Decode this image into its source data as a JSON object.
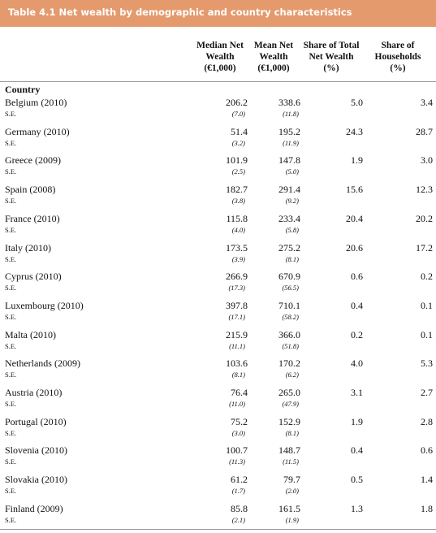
{
  "header": {
    "title": "Table 4.1  Net wealth by demographic and country characteristics"
  },
  "table": {
    "columns": [
      [
        "Median Net",
        "Wealth",
        "(€1,000)"
      ],
      [
        "Mean Net",
        "Wealth",
        "(€1,000)"
      ],
      [
        "Share of Total",
        "Net Wealth",
        "(%)"
      ],
      [
        "Share of",
        "Households",
        "(%)"
      ]
    ],
    "section": "Country",
    "rows": [
      {
        "name": "Belgium (2010)",
        "se_label": "S.E.",
        "median": "206.2",
        "mean": "338.6",
        "share_wealth": "5.0",
        "share_households": "3.4",
        "se_median": "(7.0)",
        "se_mean": "(11.8)"
      },
      {
        "name": "Germany (2010)",
        "se_label": "S.E.",
        "median": "51.4",
        "mean": "195.2",
        "share_wealth": "24.3",
        "share_households": "28.7",
        "se_median": "(3.2)",
        "se_mean": "(11.9)"
      },
      {
        "name": "Greece (2009)",
        "se_label": "S.E.",
        "median": "101.9",
        "mean": "147.8",
        "share_wealth": "1.9",
        "share_households": "3.0",
        "se_median": "(2.5)",
        "se_mean": "(5.0)"
      },
      {
        "name": "Spain (2008)",
        "se_label": "S.E.",
        "median": "182.7",
        "mean": "291.4",
        "share_wealth": "15.6",
        "share_households": "12.3",
        "se_median": "(3.8)",
        "se_mean": "(9.2)"
      },
      {
        "name": "France (2010)",
        "se_label": "S.E.",
        "median": "115.8",
        "mean": "233.4",
        "share_wealth": "20.4",
        "share_households": "20.2",
        "se_median": "(4.0)",
        "se_mean": "(5.8)"
      },
      {
        "name": "Italy (2010)",
        "se_label": "S.E.",
        "median": "173.5",
        "mean": "275.2",
        "share_wealth": "20.6",
        "share_households": "17.2",
        "se_median": "(3.9)",
        "se_mean": "(8.1)"
      },
      {
        "name": "Cyprus (2010)",
        "se_label": "S.E.",
        "median": "266.9",
        "mean": "670.9",
        "share_wealth": "0.6",
        "share_households": "0.2",
        "se_median": "(17.3)",
        "se_mean": "(56.5)"
      },
      {
        "name": "Luxembourg (2010)",
        "se_label": "S.E.",
        "median": "397.8",
        "mean": "710.1",
        "share_wealth": "0.4",
        "share_households": "0.1",
        "se_median": "(17.1)",
        "se_mean": "(58.2)"
      },
      {
        "name": "Malta (2010)",
        "se_label": "S.E.",
        "median": "215.9",
        "mean": "366.0",
        "share_wealth": "0.2",
        "share_households": "0.1",
        "se_median": "(11.1)",
        "se_mean": "(51.8)"
      },
      {
        "name": "Netherlands (2009)",
        "se_label": "S.E.",
        "median": "103.6",
        "mean": "170.2",
        "share_wealth": "4.0",
        "share_households": "5.3",
        "se_median": "(8.1)",
        "se_mean": "(6.2)"
      },
      {
        "name": "Austria (2010)",
        "se_label": "S.E.",
        "median": "76.4",
        "mean": "265.0",
        "share_wealth": "3.1",
        "share_households": "2.7",
        "se_median": "(11.0)",
        "se_mean": "(47.9)"
      },
      {
        "name": "Portugal (2010)",
        "se_label": "S.E.",
        "median": "75.2",
        "mean": "152.9",
        "share_wealth": "1.9",
        "share_households": "2.8",
        "se_median": "(3.0)",
        "se_mean": "(8.1)"
      },
      {
        "name": "Slovenia (2010)",
        "se_label": "S.E.",
        "median": "100.7",
        "mean": "148.7",
        "share_wealth": "0.4",
        "share_households": "0.6",
        "se_median": "(11.3)",
        "se_mean": "(11.5)"
      },
      {
        "name": "Slovakia (2010)",
        "se_label": "S.E.",
        "median": "61.2",
        "mean": "79.7",
        "share_wealth": "0.5",
        "share_households": "1.4",
        "se_median": "(1.7)",
        "se_mean": "(2.0)"
      },
      {
        "name": "Finland (2009)",
        "se_label": "S.E.",
        "median": "85.8",
        "mean": "161.5",
        "share_wealth": "1.3",
        "share_households": "1.8",
        "se_median": "(2.1)",
        "se_mean": "(1.9)"
      }
    ]
  }
}
